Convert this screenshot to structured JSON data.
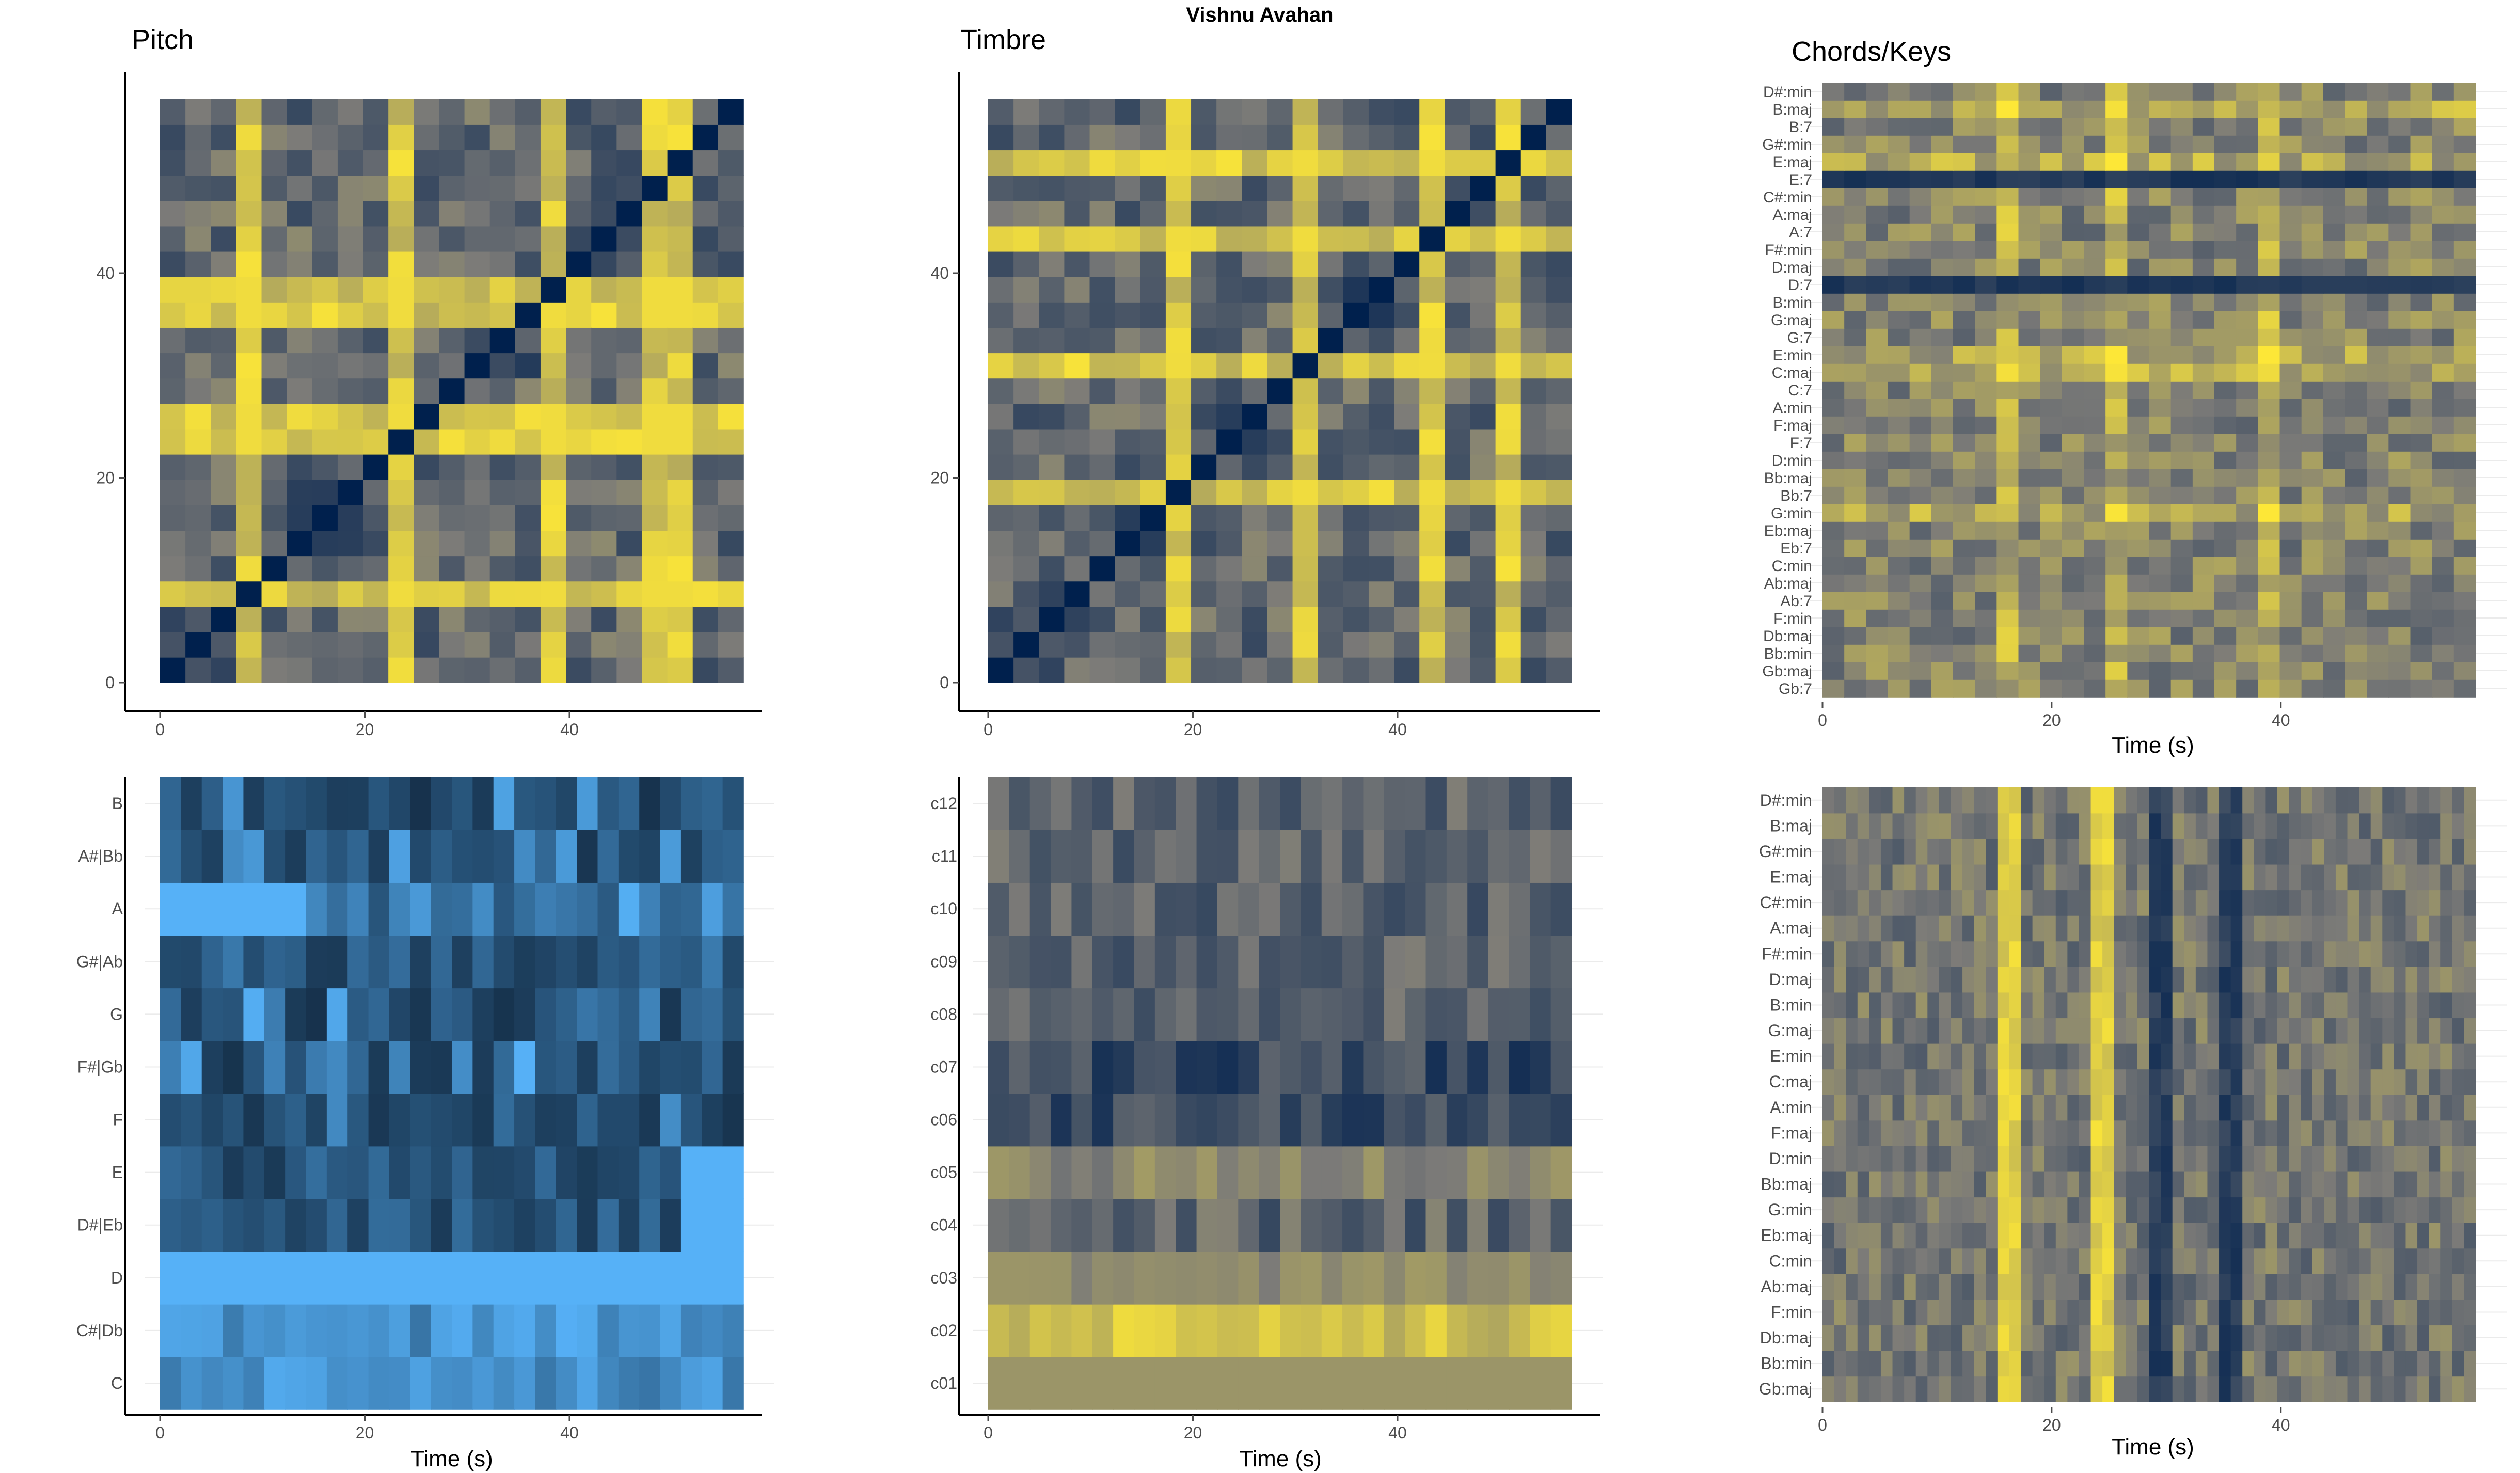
{
  "page": {
    "title": "Vishnu Avahan"
  },
  "colors": {
    "cividis_low": "#00204d",
    "cividis_mid": "#7c7b78",
    "cividis_high": "#fde737",
    "chroma_low": "#132b43",
    "chroma_high": "#56b1f7",
    "axis": "#000000",
    "tick_text": "#4d4d4d",
    "grid": "#ebebeb"
  },
  "panels": {
    "pitch_ssm": {
      "title": "Pitch"
    },
    "timbre_ssm": {
      "title": "Timbre"
    },
    "chords": {
      "title": "Chords/Keys",
      "xlabel": "Time (s)"
    },
    "chromagram": {
      "xlabel": "Time (s)"
    },
    "cepstrogram": {
      "xlabel": "Time (s)"
    },
    "keygram": {
      "xlabel": "Time (s)"
    }
  },
  "chart_data": [
    {
      "id": "pitch_ssm",
      "type": "heatmap",
      "title": "Pitch",
      "colormap": "cividis",
      "x_range": [
        0,
        57
      ],
      "y_range": [
        0,
        57
      ],
      "x_ticks": [
        0,
        20,
        40
      ],
      "y_ticks": [
        0,
        20,
        40
      ],
      "segments": 23,
      "highlight_rows": [
        3,
        9,
        15,
        19,
        20
      ],
      "highlight_cols": [
        3,
        9,
        10,
        14,
        15
      ]
    },
    {
      "id": "timbre_ssm",
      "type": "heatmap",
      "title": "Timbre",
      "colormap": "cividis",
      "x_range": [
        0,
        57
      ],
      "y_range": [
        0,
        57
      ],
      "x_ticks": [
        0,
        20,
        40
      ],
      "y_ticks": [
        0,
        20,
        40
      ],
      "segments": 23,
      "highlight_rows": [
        7,
        12,
        17,
        20
      ],
      "highlight_cols": [
        7,
        12,
        17,
        20
      ]
    },
    {
      "id": "chords",
      "type": "heatmap",
      "title": "Chords/Keys",
      "colormap": "cividis",
      "xlabel": "Time (s)",
      "x_range": [
        0,
        57
      ],
      "x_ticks": [
        0,
        20,
        40
      ],
      "y_categories": [
        "Gb:7",
        "Gb:maj",
        "Bb:min",
        "Db:maj",
        "F:min",
        "Ab:7",
        "Ab:maj",
        "C:min",
        "Eb:7",
        "Eb:maj",
        "G:min",
        "Bb:7",
        "Bb:maj",
        "D:min",
        "F:7",
        "F:maj",
        "A:min",
        "C:7",
        "C:maj",
        "E:min",
        "G:7",
        "G:maj",
        "B:min",
        "D:7",
        "D:maj",
        "F#:min",
        "A:7",
        "A:maj",
        "C#:min",
        "E:7",
        "E:maj",
        "G#:min",
        "B:7",
        "B:maj",
        "D#:min"
      ],
      "bright_cols": [
        8,
        13,
        20
      ],
      "bright_rows": [
        10,
        18,
        19,
        30,
        33
      ]
    },
    {
      "id": "chromagram",
      "type": "heatmap",
      "colormap": "chroma_blue",
      "xlabel": "Time (s)",
      "x_range": [
        0,
        57
      ],
      "x_ticks": [
        0,
        20,
        40
      ],
      "y_categories": [
        "C",
        "C#|Db",
        "D",
        "D#|Eb",
        "E",
        "F",
        "F#|Gb",
        "G",
        "G#|Ab",
        "A",
        "A#|Bb",
        "B"
      ]
    },
    {
      "id": "cepstrogram",
      "type": "heatmap",
      "colormap": "cividis",
      "xlabel": "Time (s)",
      "x_range": [
        0,
        57
      ],
      "x_ticks": [
        0,
        20,
        40
      ],
      "y_categories": [
        "c01",
        "c02",
        "c03",
        "c04",
        "c05",
        "c06",
        "c07",
        "c08",
        "c09",
        "c10",
        "c11",
        "c12"
      ]
    },
    {
      "id": "keygram",
      "type": "heatmap",
      "colormap": "cividis",
      "xlabel": "Time (s)",
      "x_range": [
        0,
        57
      ],
      "x_ticks": [
        0,
        20,
        40
      ],
      "y_categories": [
        "Gb:maj",
        "Bb:min",
        "Db:maj",
        "F:min",
        "Ab:maj",
        "C:min",
        "Eb:maj",
        "G:min",
        "Bb:maj",
        "D:min",
        "F:maj",
        "A:min",
        "C:maj",
        "E:min",
        "G:maj",
        "B:min",
        "D:maj",
        "F#:min",
        "A:maj",
        "C#:min",
        "E:maj",
        "G#:min",
        "B:maj",
        "D#:min"
      ],
      "bright_cols": [
        15,
        23
      ],
      "dark_cols": [
        28,
        34
      ]
    }
  ]
}
